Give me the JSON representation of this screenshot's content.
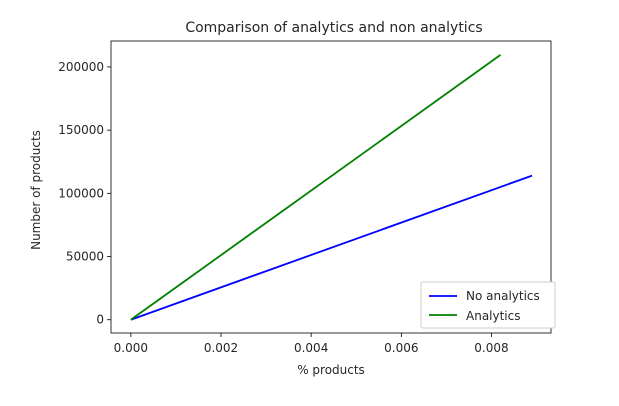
{
  "chart_data": {
    "type": "line",
    "title": "Comparison of analytics and non analytics",
    "xlabel": "% products",
    "ylabel": "Number of products",
    "xlim": [
      -0.00044,
      0.00932
    ],
    "ylim": [
      -10500,
      220500
    ],
    "xticks": [
      0.0,
      0.002,
      0.004,
      0.006,
      0.008
    ],
    "xtick_labels": [
      "0.000",
      "0.002",
      "0.004",
      "0.006",
      "0.008"
    ],
    "yticks": [
      0,
      50000,
      100000,
      150000,
      200000
    ],
    "ytick_labels": [
      "0",
      "50000",
      "100000",
      "150000",
      "200000"
    ],
    "grid": false,
    "legend_position": "lower-right",
    "series": [
      {
        "name": "No analytics",
        "color": "#0000ff",
        "x": [
          0.0,
          0.0089
        ],
        "y": [
          0,
          114000
        ]
      },
      {
        "name": "Analytics",
        "color": "#008000",
        "x": [
          0.0,
          0.0082
        ],
        "y": [
          0,
          209500
        ]
      }
    ]
  }
}
